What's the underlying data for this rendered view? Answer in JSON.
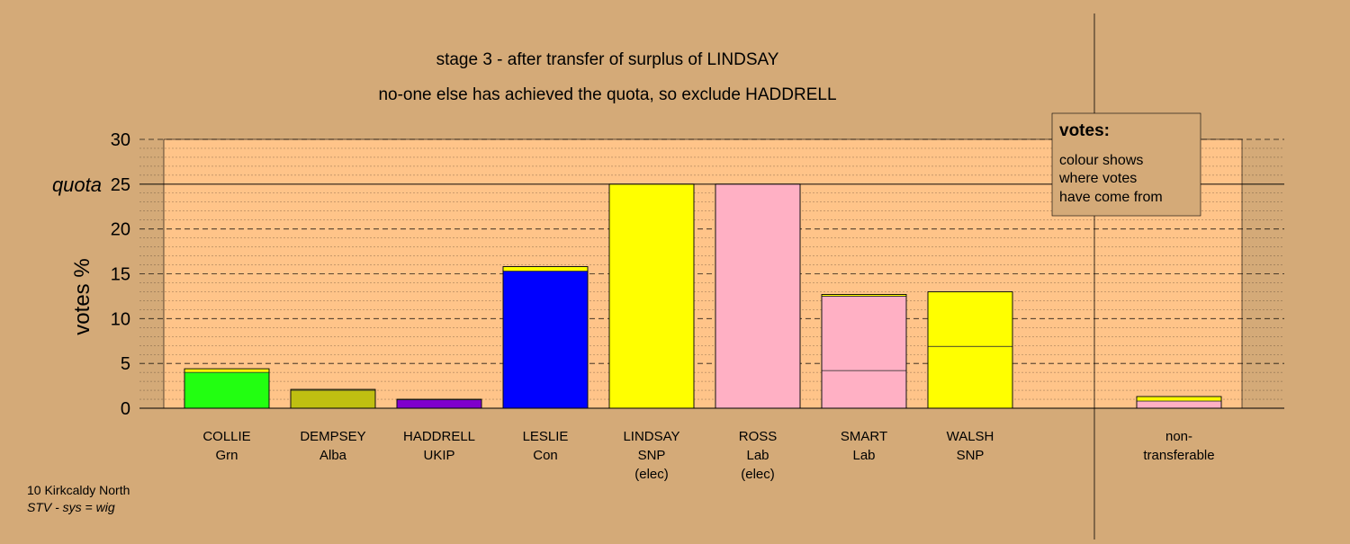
{
  "chart_data": {
    "type": "bar",
    "title": "stage 3 - after transfer of surplus of LINDSAY",
    "subtitle": "no-one else has achieved the quota, so exclude HADDRELL",
    "ylabel": "votes %",
    "ylim": [
      0,
      30
    ],
    "yticks": [
      "0",
      "5",
      "10",
      "15",
      "20",
      "25",
      "30"
    ],
    "quota": 25,
    "quota_label": "quota",
    "candidates": [
      {
        "name": "COLLIE",
        "party": "Grn",
        "note": "",
        "total": 4.4,
        "segments": [
          {
            "value": 4.0,
            "color": "#22ff11"
          },
          {
            "value": 0.4,
            "color": "#ffff00"
          }
        ]
      },
      {
        "name": "DEMPSEY",
        "party": "Alba",
        "note": "",
        "total": 2.1,
        "segments": [
          {
            "value": 2.0,
            "color": "#bfbf11"
          },
          {
            "value": 0.1,
            "color": "#ffff00"
          }
        ]
      },
      {
        "name": "HADDRELL",
        "party": "UKIP",
        "note": "",
        "total": 1.0,
        "segments": [
          {
            "value": 0.95,
            "color": "#7f00cc"
          },
          {
            "value": 0.05,
            "color": "#ffff00"
          }
        ]
      },
      {
        "name": "LESLIE",
        "party": "Con",
        "note": "",
        "total": 15.8,
        "segments": [
          {
            "value": 15.3,
            "color": "#0000ff"
          },
          {
            "value": 0.5,
            "color": "#ffff00"
          }
        ]
      },
      {
        "name": "LINDSAY",
        "party": "SNP",
        "note": "(elec)",
        "total": 25.0,
        "segments": [
          {
            "value": 25.0,
            "color": "#ffff00"
          }
        ]
      },
      {
        "name": "ROSS",
        "party": "Lab",
        "note": "(elec)",
        "total": 25.0,
        "segments": [
          {
            "value": 25.0,
            "color": "#ffb0c4"
          }
        ]
      },
      {
        "name": "SMART",
        "party": "Lab",
        "note": "",
        "total": 12.7,
        "segments": [
          {
            "value": 4.2,
            "color": "#ffb0c4"
          },
          {
            "value": 8.3,
            "color": "#ffb0c4"
          },
          {
            "value": 0.2,
            "color": "#ffff00"
          }
        ]
      },
      {
        "name": "WALSH",
        "party": "SNP",
        "note": "",
        "total": 13.0,
        "segments": [
          {
            "value": 6.9,
            "color": "#ffff00"
          },
          {
            "value": 6.1,
            "color": "#ffff00"
          }
        ]
      }
    ],
    "nontransferable": {
      "label_line1": "non-",
      "label_line2": "transferable",
      "total": 1.3,
      "segments": [
        {
          "value": 0.8,
          "color": "#ffb0c4"
        },
        {
          "value": 0.5,
          "color": "#ffff00"
        }
      ]
    },
    "grid": true
  },
  "legend": {
    "title": "votes:",
    "lines": [
      "colour shows",
      "where votes",
      "have come from"
    ]
  },
  "footer": {
    "line1": "10 Kirkcaldy North",
    "line2": "STV - sys = wig"
  },
  "colors": {
    "background": "#d4aa78",
    "plot_background": "#ffc489"
  }
}
